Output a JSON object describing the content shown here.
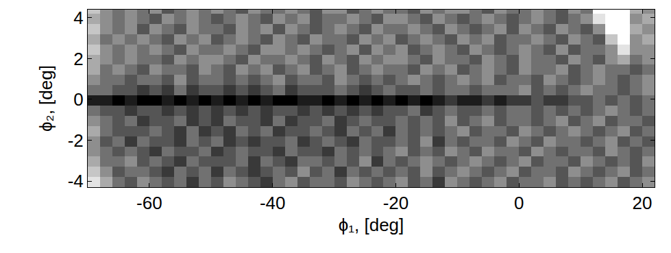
{
  "chart_data": {
    "type": "heatmap",
    "x_label": "ϕ₁, [deg]",
    "y_label": "ϕ₂, [deg]",
    "xlim": [
      -70,
      22
    ],
    "ylim": [
      -4.3,
      4.4
    ],
    "xticks": [
      -60,
      -40,
      -20,
      0,
      20
    ],
    "yticks": [
      -4,
      -2,
      0,
      2,
      4
    ],
    "grid": false,
    "zlim": [
      0,
      9
    ],
    "x_edges": [
      -70,
      -68,
      -66,
      -64,
      -62,
      -60,
      -58,
      -56,
      -54,
      -52,
      -50,
      -48,
      -46,
      -44,
      -42,
      -40,
      -38,
      -36,
      -34,
      -32,
      -30,
      -28,
      -26,
      -24,
      -22,
      -20,
      -18,
      -16,
      -14,
      -12,
      -10,
      -8,
      -6,
      -4,
      -2,
      0,
      2,
      4,
      6,
      8,
      10,
      12,
      14,
      16,
      18,
      20,
      22
    ],
    "y_edges": [
      -4.3,
      -3.8,
      -3.3,
      -2.8,
      -2.3,
      -1.8,
      -1.3,
      -0.8,
      -0.3,
      0.2,
      0.7,
      1.2,
      1.7,
      2.2,
      2.7,
      3.2,
      3.7,
      4.2,
      4.7
    ],
    "cells": [
      [
        1,
        3,
        5,
        6,
        4,
        5,
        6,
        5,
        7,
        5,
        6,
        4,
        5,
        6,
        7,
        5,
        4,
        6,
        5,
        5,
        6,
        4,
        5,
        6,
        5,
        4,
        6,
        5,
        7,
        4,
        5,
        6,
        5,
        4,
        6,
        5,
        5,
        4,
        6,
        5,
        6,
        5,
        4,
        6,
        5,
        4
      ],
      [
        2,
        4,
        6,
        5,
        5,
        6,
        7,
        5,
        6,
        5,
        7,
        5,
        6,
        7,
        6,
        5,
        6,
        4,
        6,
        5,
        7,
        5,
        6,
        5,
        6,
        5,
        6,
        4,
        6,
        5,
        4,
        5,
        6,
        5,
        4,
        6,
        5,
        5,
        6,
        4,
        5,
        6,
        5,
        4,
        6,
        5
      ],
      [
        3,
        5,
        5,
        4,
        6,
        5,
        6,
        7,
        5,
        6,
        6,
        6,
        5,
        7,
        5,
        6,
        7,
        5,
        5,
        6,
        5,
        6,
        4,
        7,
        5,
        6,
        5,
        4,
        5,
        6,
        5,
        4,
        5,
        6,
        5,
        4,
        6,
        5,
        5,
        6,
        4,
        5,
        6,
        5,
        6,
        4
      ],
      [
        4,
        5,
        6,
        5,
        6,
        7,
        5,
        6,
        6,
        5,
        7,
        6,
        5,
        6,
        6,
        7,
        5,
        6,
        6,
        7,
        5,
        6,
        5,
        6,
        5,
        4,
        6,
        5,
        6,
        4,
        5,
        6,
        4,
        5,
        5,
        6,
        4,
        5,
        6,
        5,
        5,
        6,
        4,
        5,
        6,
        5
      ],
      [
        4,
        6,
        5,
        7,
        5,
        6,
        6,
        7,
        5,
        6,
        5,
        7,
        6,
        7,
        6,
        6,
        5,
        7,
        6,
        5,
        6,
        7,
        5,
        6,
        6,
        5,
        6,
        4,
        7,
        5,
        6,
        5,
        5,
        6,
        4,
        5,
        6,
        4,
        5,
        5,
        6,
        5,
        4,
        6,
        5,
        6
      ],
      [
        3,
        5,
        6,
        6,
        6,
        5,
        6,
        7,
        5,
        7,
        6,
        7,
        5,
        6,
        5,
        7,
        6,
        6,
        5,
        6,
        7,
        5,
        6,
        5,
        7,
        5,
        6,
        5,
        6,
        5,
        4,
        6,
        5,
        5,
        6,
        4,
        5,
        6,
        5,
        4,
        5,
        6,
        5,
        4,
        6,
        5
      ],
      [
        4,
        5,
        6,
        5,
        7,
        6,
        6,
        5,
        7,
        6,
        7,
        5,
        6,
        6,
        7,
        5,
        7,
        6,
        6,
        5,
        7,
        6,
        5,
        6,
        6,
        5,
        6,
        5,
        6,
        4,
        6,
        5,
        4,
        6,
        5,
        5,
        6,
        5,
        4,
        6,
        5,
        4,
        6,
        5,
        5,
        6
      ],
      [
        5,
        6,
        6,
        7,
        6,
        6,
        7,
        6,
        7,
        6,
        7,
        6,
        7,
        6,
        7,
        6,
        6,
        7,
        6,
        7,
        6,
        7,
        6,
        7,
        6,
        6,
        5,
        7,
        6,
        5,
        6,
        6,
        5,
        6,
        5,
        5,
        6,
        5,
        6,
        5,
        6,
        5,
        4,
        5,
        6,
        5
      ],
      [
        8,
        8,
        9,
        8,
        9,
        9,
        8,
        9,
        8,
        9,
        8,
        9,
        8,
        9,
        8,
        9,
        9,
        8,
        8,
        9,
        8,
        9,
        8,
        9,
        8,
        9,
        8,
        9,
        8,
        7,
        8,
        8,
        7,
        8,
        7,
        7,
        6,
        7,
        7,
        6,
        6,
        5,
        6,
        5,
        6,
        5
      ],
      [
        5,
        5,
        6,
        6,
        7,
        6,
        7,
        5,
        7,
        6,
        6,
        7,
        6,
        7,
        6,
        5,
        7,
        6,
        6,
        6,
        5,
        6,
        7,
        6,
        5,
        6,
        6,
        5,
        6,
        5,
        5,
        6,
        5,
        5,
        5,
        4,
        6,
        5,
        6,
        5,
        4,
        5,
        5,
        6,
        5,
        4
      ],
      [
        4,
        5,
        5,
        6,
        5,
        5,
        6,
        4,
        6,
        5,
        5,
        6,
        5,
        6,
        5,
        4,
        6,
        5,
        5,
        6,
        4,
        5,
        6,
        5,
        6,
        5,
        4,
        5,
        6,
        5,
        4,
        5,
        4,
        6,
        5,
        5,
        6,
        4,
        5,
        6,
        5,
        4,
        5,
        6,
        5,
        4
      ],
      [
        3,
        5,
        4,
        5,
        6,
        4,
        5,
        5,
        6,
        4,
        5,
        6,
        4,
        5,
        4,
        6,
        5,
        4,
        6,
        5,
        4,
        6,
        5,
        4,
        5,
        5,
        6,
        4,
        5,
        4,
        6,
        5,
        4,
        5,
        6,
        4,
        5,
        5,
        4,
        6,
        5,
        4,
        5,
        5,
        6,
        5
      ],
      [
        3,
        4,
        5,
        4,
        5,
        5,
        6,
        4,
        5,
        4,
        4,
        5,
        6,
        4,
        5,
        5,
        4,
        5,
        6,
        4,
        5,
        6,
        4,
        5,
        4,
        4,
        5,
        6,
        4,
        5,
        5,
        6,
        4,
        5,
        6,
        4,
        5,
        5,
        6,
        4,
        5,
        6,
        4,
        3,
        5,
        4
      ],
      [
        2,
        4,
        5,
        4,
        5,
        4,
        5,
        6,
        4,
        5,
        5,
        4,
        5,
        6,
        4,
        4,
        5,
        4,
        5,
        6,
        5,
        4,
        6,
        4,
        5,
        4,
        6,
        5,
        4,
        5,
        6,
        4,
        5,
        6,
        5,
        4,
        5,
        6,
        4,
        6,
        5,
        5,
        4,
        1,
        4,
        4
      ],
      [
        3,
        5,
        4,
        5,
        4,
        5,
        6,
        4,
        5,
        4,
        6,
        5,
        4,
        5,
        6,
        4,
        5,
        6,
        4,
        5,
        5,
        6,
        4,
        5,
        4,
        6,
        5,
        4,
        5,
        6,
        4,
        5,
        4,
        6,
        5,
        5,
        4,
        5,
        6,
        4,
        5,
        6,
        2,
        0,
        4,
        3
      ],
      [
        2,
        4,
        5,
        4,
        6,
        4,
        5,
        6,
        4,
        5,
        5,
        6,
        4,
        5,
        4,
        6,
        4,
        5,
        6,
        5,
        4,
        5,
        6,
        4,
        5,
        5,
        4,
        5,
        6,
        4,
        5,
        6,
        5,
        4,
        6,
        4,
        5,
        6,
        4,
        5,
        6,
        4,
        0,
        0,
        3,
        4
      ],
      [
        3,
        4,
        5,
        4,
        5,
        6,
        4,
        5,
        4,
        5,
        6,
        5,
        4,
        5,
        6,
        4,
        5,
        4,
        6,
        5,
        5,
        4,
        5,
        6,
        4,
        4,
        5,
        6,
        4,
        5,
        6,
        5,
        4,
        5,
        6,
        5,
        4,
        5,
        6,
        5,
        4,
        1,
        0,
        0,
        4,
        3
      ],
      [
        2,
        4,
        5,
        4,
        5,
        4,
        6,
        5,
        4,
        5,
        4,
        5,
        6,
        4,
        5,
        5,
        4,
        5,
        6,
        4,
        4,
        6,
        5,
        4,
        5,
        5,
        6,
        4,
        5,
        4,
        4,
        5,
        6,
        4,
        5,
        5,
        4,
        5,
        6,
        4,
        5,
        0,
        0,
        0,
        3,
        4
      ]
    ]
  }
}
